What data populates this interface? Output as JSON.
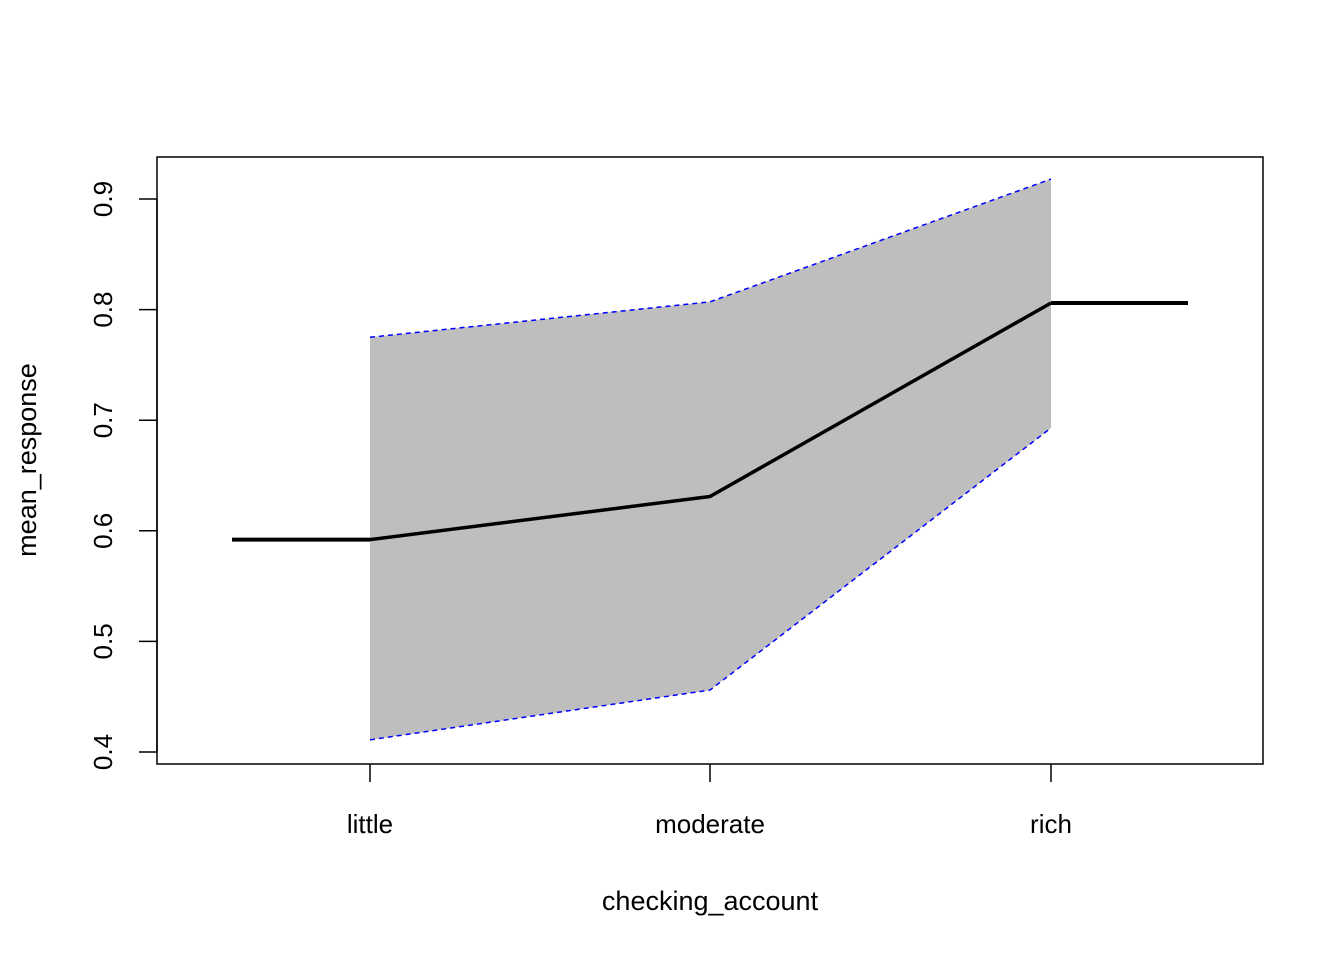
{
  "chart_data": {
    "type": "line",
    "xlabel": "checking_account",
    "ylabel": "mean_response",
    "categories": [
      "little",
      "moderate",
      "rich"
    ],
    "ylim": [
      0.4,
      0.9
    ],
    "yticks": [
      "0.4",
      "0.5",
      "0.6",
      "0.7",
      "0.8",
      "0.9"
    ],
    "grid": false,
    "series": [
      {
        "role": "mean",
        "values": [
          0.592,
          0.631,
          0.806
        ],
        "extend_ends": [
          0.592,
          0.806
        ]
      },
      {
        "role": "upper_bound",
        "values": [
          0.775,
          0.807,
          0.918
        ]
      },
      {
        "role": "lower_bound",
        "values": [
          0.411,
          0.456,
          0.693
        ]
      }
    ],
    "colors": {
      "band_fill": "#bebebe",
      "bound_line": "#0000ff",
      "mean_line": "#000000",
      "axis": "#000000"
    }
  }
}
